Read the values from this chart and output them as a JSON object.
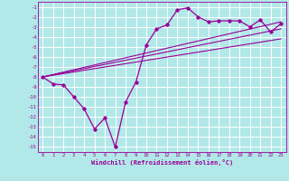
{
  "xlabel": "Windchill (Refroidissement éolien,°C)",
  "background_color": "#b2e8e8",
  "grid_color": "#c8e8e8",
  "line_color": "#990099",
  "xlim": [
    -0.5,
    23.5
  ],
  "ylim": [
    -15.5,
    -0.5
  ],
  "xticks": [
    0,
    1,
    2,
    3,
    4,
    5,
    6,
    7,
    8,
    9,
    10,
    11,
    12,
    13,
    14,
    15,
    16,
    17,
    18,
    19,
    20,
    21,
    22,
    23
  ],
  "yticks": [
    -1,
    -2,
    -3,
    -4,
    -5,
    -6,
    -7,
    -8,
    -9,
    -10,
    -11,
    -12,
    -13,
    -14,
    -15
  ],
  "data_x": [
    0,
    1,
    2,
    3,
    4,
    5,
    6,
    7,
    8,
    9,
    10,
    11,
    12,
    13,
    14,
    15,
    16,
    17,
    18,
    19,
    20,
    21,
    22,
    23
  ],
  "data_y": [
    -8.0,
    -8.7,
    -8.8,
    -10.0,
    -11.2,
    -13.2,
    -12.1,
    -15.0,
    -10.5,
    -8.5,
    -4.8,
    -3.2,
    -2.8,
    -1.3,
    -1.1,
    -2.0,
    -2.5,
    -2.4,
    -2.4,
    -2.4,
    -3.0,
    -2.3,
    -3.5,
    -2.7
  ],
  "line1_x": [
    0,
    23
  ],
  "line1_y": [
    -8.0,
    -2.5
  ],
  "line2_x": [
    0,
    23
  ],
  "line2_y": [
    -8.0,
    -3.2
  ],
  "line3_x": [
    0,
    23
  ],
  "line3_y": [
    -8.0,
    -4.2
  ]
}
